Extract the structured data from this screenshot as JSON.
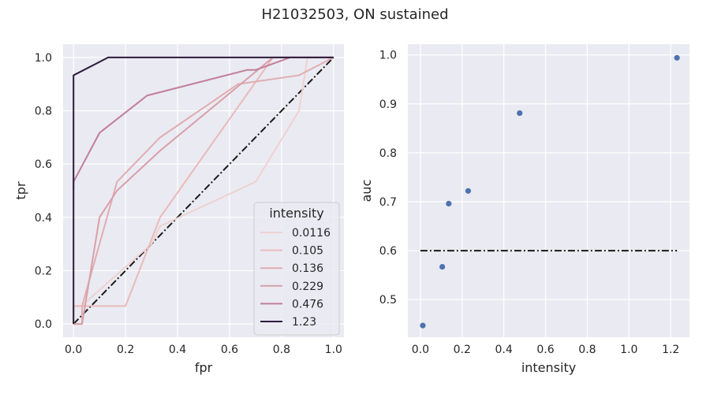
{
  "chart_data": {
    "title": "H21032503, ON sustained",
    "panels": [
      {
        "type": "line",
        "xlabel": "fpr",
        "ylabel": "tpr",
        "xlim": [
          -0.04,
          1.04
        ],
        "ylim": [
          -0.05,
          1.05
        ],
        "xticks": [
          0.0,
          0.2,
          0.4,
          0.6,
          0.8,
          1.0
        ],
        "yticks": [
          0.0,
          0.2,
          0.4,
          0.6,
          0.8,
          1.0
        ],
        "xtick_labels": [
          "0.0",
          "0.2",
          "0.4",
          "0.6",
          "0.8",
          "1.0"
        ],
        "ytick_labels": [
          "0.0",
          "0.2",
          "0.4",
          "0.6",
          "0.8",
          "1.0"
        ],
        "grid": true,
        "legend": {
          "title": "intensity",
          "placement": "lower-right"
        },
        "series": [
          {
            "name": "0.0116",
            "color": "#efd2d0",
            "points": [
              [
                0,
                0
              ],
              [
                0,
                0.067
              ],
              [
                0.03,
                0.067
              ],
              [
                0.3,
                0.3
              ],
              [
                0.333,
                0.367
              ],
              [
                0.7,
                0.533
              ],
              [
                0.867,
                0.8
              ],
              [
                0.9,
                1.0
              ],
              [
                1.0,
                1.0
              ]
            ]
          },
          {
            "name": "0.105",
            "color": "#e9bab8",
            "points": [
              [
                0,
                0
              ],
              [
                0,
                0.067
              ],
              [
                0.2,
                0.067
              ],
              [
                0.333,
                0.4
              ],
              [
                0.767,
                1.0
              ],
              [
                1.0,
                1.0
              ]
            ]
          },
          {
            "name": "0.136",
            "color": "#e0adb0",
            "points": [
              [
                0,
                0
              ],
              [
                0.033,
                0
              ],
              [
                0.033,
                0.067
              ],
              [
                0.167,
                0.533
              ],
              [
                0.333,
                0.7
              ],
              [
                0.633,
                0.9
              ],
              [
                0.867,
                0.933
              ],
              [
                1.0,
                1.0
              ]
            ]
          },
          {
            "name": "0.229",
            "color": "#d8a0a9",
            "points": [
              [
                0,
                0
              ],
              [
                0.033,
                0
              ],
              [
                0.1,
                0.4
              ],
              [
                0.167,
                0.5
              ],
              [
                0.333,
                0.65
              ],
              [
                0.767,
                1.0
              ],
              [
                1.0,
                1.0
              ]
            ]
          },
          {
            "name": "0.476",
            "color": "#c27e98",
            "points": [
              [
                0,
                0.5
              ],
              [
                0,
                0.533
              ],
              [
                0.1,
                0.717
              ],
              [
                0.283,
                0.857
              ],
              [
                0.667,
                0.953
              ],
              [
                0.7,
                0.953
              ],
              [
                0.833,
                1.0
              ],
              [
                1.0,
                1.0
              ]
            ]
          },
          {
            "name": "1.23",
            "color": "#2b1b3c",
            "points": [
              [
                0,
                0
              ],
              [
                0,
                0.933
              ],
              [
                0.133,
                1.0
              ],
              [
                1.0,
                1.0
              ]
            ]
          }
        ],
        "reference_line": {
          "points": [
            [
              0,
              0
            ],
            [
              1,
              1
            ]
          ],
          "style": "dash-dot",
          "color": "#1a1a1a"
        }
      },
      {
        "type": "scatter",
        "xlabel": "intensity",
        "ylabel": "auc",
        "xlim": [
          -0.06,
          1.29
        ],
        "ylim": [
          0.423,
          1.022
        ],
        "xticks": [
          0.0,
          0.2,
          0.4,
          0.6,
          0.8,
          1.0,
          1.2
        ],
        "yticks": [
          0.5,
          0.6,
          0.7,
          0.8,
          0.9,
          1.0
        ],
        "xtick_labels": [
          "0.0",
          "0.2",
          "0.4",
          "0.6",
          "0.8",
          "1.0",
          "1.2"
        ],
        "ytick_labels": [
          "0.5",
          "0.6",
          "0.7",
          "0.8",
          "0.9",
          "1.0"
        ],
        "grid": true,
        "color": "#4c72b0",
        "x": [
          0.0116,
          0.105,
          0.136,
          0.229,
          0.476,
          1.23
        ],
        "y": [
          0.447,
          0.567,
          0.696,
          0.722,
          0.881,
          0.994
        ],
        "reference_line": {
          "y": 0.6,
          "x_range": [
            0.0,
            1.23
          ],
          "style": "dash-dot",
          "color": "#1a1a1a"
        }
      }
    ]
  }
}
